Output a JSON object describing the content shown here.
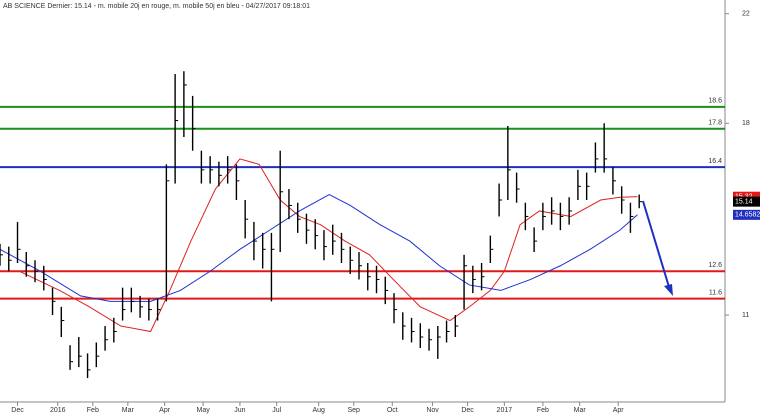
{
  "chart_data": {
    "type": "ohlc",
    "title": "AB SCIENCE Dernier: 15.14 - m. mobile 20j en rouge, m. mobile 50j en bleu - 04/27/2017 09:18:01",
    "xlim": [
      0,
      414
    ],
    "ylim": [
      7.9,
      22.5
    ],
    "yticks": [
      22,
      18,
      11
    ],
    "xticks": [
      {
        "value": 10,
        "label": "Dec"
      },
      {
        "value": 33,
        "label": "2016"
      },
      {
        "value": 53,
        "label": "Feb"
      },
      {
        "value": 73,
        "label": "Mar"
      },
      {
        "value": 94,
        "label": "Apr"
      },
      {
        "value": 116,
        "label": "May"
      },
      {
        "value": 137,
        "label": "Jun"
      },
      {
        "value": 158,
        "label": "Jul"
      },
      {
        "value": 182,
        "label": "Aug"
      },
      {
        "value": 202,
        "label": "Sep"
      },
      {
        "value": 224,
        "label": "Oct"
      },
      {
        "value": 247,
        "label": "Nov"
      },
      {
        "value": 267,
        "label": "Dec"
      },
      {
        "value": 288,
        "label": "2017"
      },
      {
        "value": 310,
        "label": "Feb"
      },
      {
        "value": 331,
        "label": "Mar"
      },
      {
        "value": 353,
        "label": "Apr"
      }
    ],
    "color": "#000000",
    "x": [
      0,
      5,
      10,
      15,
      20,
      25,
      30,
      35,
      40,
      45,
      50,
      55,
      60,
      65,
      70,
      75,
      80,
      85,
      90,
      95,
      100,
      105,
      110,
      115,
      120,
      125,
      130,
      135,
      140,
      145,
      150,
      155,
      160,
      165,
      170,
      175,
      180,
      185,
      190,
      195,
      200,
      205,
      210,
      215,
      220,
      225,
      230,
      235,
      240,
      245,
      250,
      255,
      260,
      265,
      270,
      275,
      280,
      285,
      290,
      295,
      300,
      305,
      310,
      315,
      320,
      325,
      330,
      335,
      340,
      345,
      350,
      355,
      360,
      365
    ],
    "high": [
      13.6,
      13.5,
      14.4,
      13.3,
      13.0,
      12.8,
      12.0,
      11.3,
      9.9,
      10.2,
      9.6,
      10.0,
      10.6,
      10.9,
      12.0,
      12.0,
      11.7,
      11.6,
      11.6,
      16.5,
      19.8,
      19.9,
      19.0,
      17.0,
      16.8,
      16.6,
      16.8,
      16.5,
      15.2,
      14.4,
      14.0,
      14.0,
      17.0,
      15.6,
      15.1,
      14.7,
      14.5,
      14.1,
      14.3,
      14.0,
      13.5,
      13.3,
      12.9,
      12.8,
      12.4,
      11.8,
      11.1,
      10.9,
      10.7,
      10.5,
      10.6,
      10.8,
      11.0,
      13.2,
      12.8,
      12.9,
      13.9,
      15.8,
      17.9,
      16.2,
      15.1,
      14.2,
      15.1,
      15.3,
      15.1,
      15.3,
      16.3,
      16.2,
      17.3,
      18.0,
      16.4,
      15.7,
      15.1,
      15.4
    ],
    "low": [
      12.8,
      12.6,
      12.9,
      12.4,
      12.2,
      11.9,
      11.0,
      10.2,
      9.0,
      9.1,
      8.7,
      9.1,
      9.7,
      10.0,
      10.8,
      11.1,
      10.9,
      10.8,
      10.8,
      11.5,
      15.8,
      17.5,
      17.0,
      15.8,
      15.8,
      15.7,
      15.8,
      15.2,
      13.8,
      13.0,
      12.7,
      11.5,
      13.3,
      14.5,
      14.0,
      13.6,
      13.4,
      13.0,
      13.2,
      12.9,
      12.5,
      12.3,
      11.9,
      11.8,
      11.4,
      10.7,
      10.1,
      10.0,
      9.8,
      9.7,
      9.4,
      10.0,
      10.2,
      11.2,
      11.8,
      11.9,
      12.9,
      14.6,
      15.2,
      15.1,
      14.1,
      13.3,
      14.1,
      14.3,
      14.1,
      14.3,
      15.2,
      15.2,
      16.2,
      16.2,
      15.4,
      14.7,
      14.0,
      14.9
    ],
    "close": [
      13.2,
      13.0,
      13.4,
      12.8,
      12.6,
      12.3,
      11.5,
      10.8,
      9.3,
      9.5,
      9.0,
      9.5,
      10.1,
      10.4,
      11.2,
      11.5,
      11.3,
      11.2,
      11.2,
      15.9,
      18.1,
      19.4,
      17.8,
      16.3,
      16.3,
      16.1,
      16.3,
      15.9,
      14.5,
      13.7,
      13.4,
      13.4,
      15.5,
      15.0,
      14.5,
      14.1,
      13.9,
      13.5,
      13.7,
      13.4,
      13.0,
      12.8,
      12.4,
      12.3,
      11.9,
      11.2,
      10.6,
      10.4,
      10.2,
      10.1,
      10.2,
      10.4,
      10.6,
      12.8,
      12.3,
      12.4,
      13.4,
      15.2,
      16.3,
      15.6,
      14.6,
      13.7,
      14.6,
      14.8,
      14.6,
      14.8,
      15.7,
      15.7,
      16.7,
      16.7,
      15.9,
      15.2,
      14.6,
      15.14
    ],
    "lines": [
      {
        "color": "#e02020",
        "x": [
          11,
          34,
          51,
          69,
          86,
          97,
          109,
          123,
          137,
          148,
          160,
          171,
          183,
          197,
          211,
          223,
          240,
          257,
          268,
          280,
          288,
          297,
          308,
          326,
          343,
          354,
          364
        ],
        "values": [
          12.6,
          11.9,
          11.3,
          10.6,
          10.4,
          11.9,
          13.7,
          15.6,
          16.7,
          16.5,
          15.2,
          14.6,
          14.3,
          13.7,
          13.2,
          12.4,
          11.3,
          10.8,
          11.3,
          11.9,
          12.6,
          14.3,
          14.8,
          14.6,
          15.2,
          15.3,
          15.32
        ]
      },
      {
        "color": "#2030d0",
        "x": [
          0,
          23,
          46,
          63,
          86,
          103,
          120,
          137,
          154,
          171,
          188,
          200,
          217,
          234,
          251,
          268,
          286,
          303,
          320,
          337,
          354,
          364
        ],
        "values": [
          13.4,
          12.6,
          11.7,
          11.5,
          11.5,
          11.9,
          12.6,
          13.4,
          14.1,
          14.8,
          15.4,
          15.0,
          14.3,
          13.7,
          12.8,
          12.1,
          11.9,
          12.3,
          12.8,
          13.4,
          14.1,
          14.66
        ]
      }
    ],
    "levels": [
      {
        "value": 18.6,
        "color": "#1a8f1a"
      },
      {
        "value": 17.8,
        "color": "#1a8f1a"
      },
      {
        "value": 16.4,
        "color": "#1f2fbf"
      },
      {
        "value": 12.6,
        "color": "#e01818"
      },
      {
        "value": 11.6,
        "color": "#e01818"
      }
    ],
    "price_tags": [
      {
        "value": 15.32,
        "color": "#e01818"
      },
      {
        "value": 15.14,
        "color": "#000000"
      },
      {
        "value": 14.6582,
        "color": "#1f2fbf"
      }
    ]
  }
}
